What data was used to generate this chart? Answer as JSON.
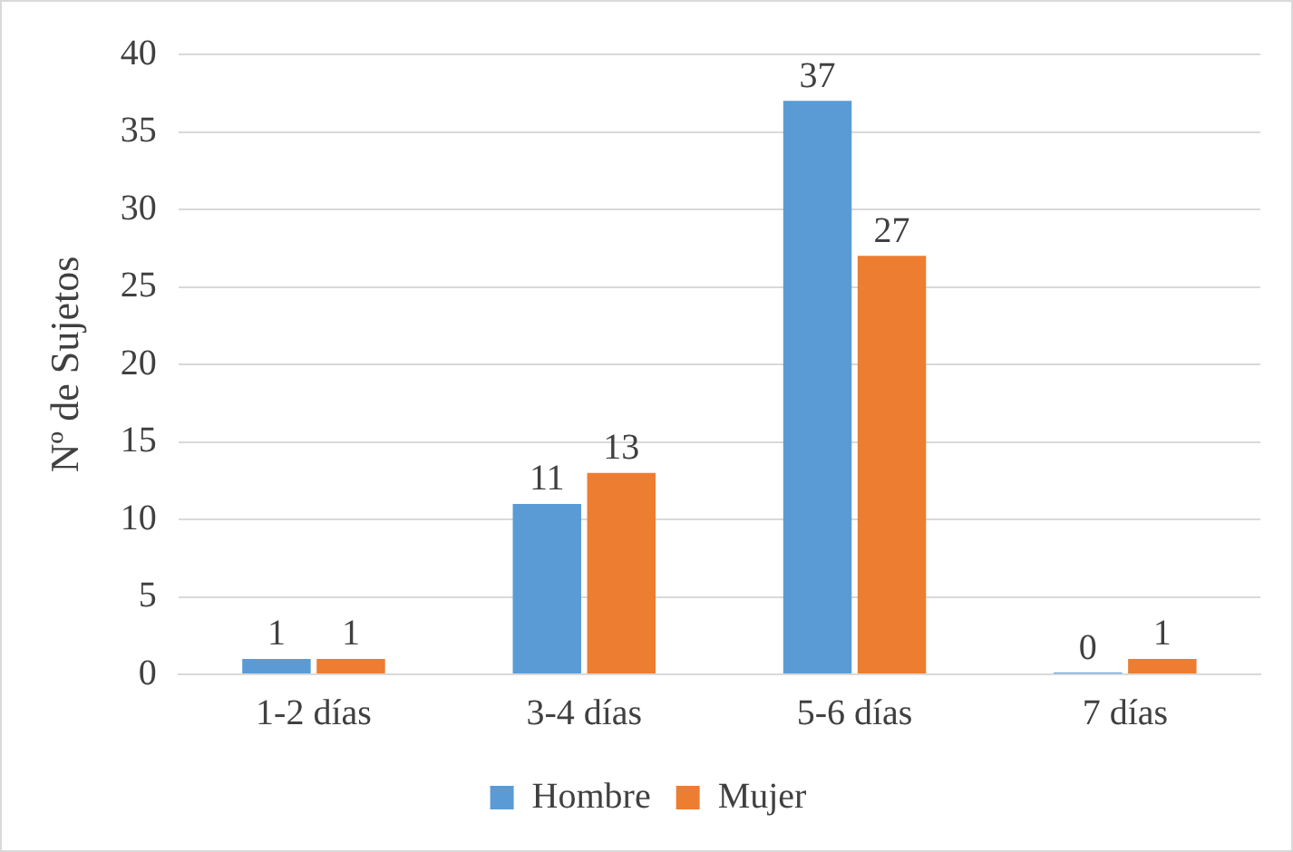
{
  "chart_data": {
    "type": "bar",
    "ylabel": "Nº de Sujetos",
    "categories": [
      "1-2 días",
      "3-4 días",
      "5-6 días",
      "7 días"
    ],
    "series": [
      {
        "name": "Hombre",
        "color": "#5b9bd5",
        "values": [
          1,
          11,
          37,
          0
        ]
      },
      {
        "name": "Mujer",
        "color": "#ed7d31",
        "values": [
          1,
          13,
          27,
          1
        ]
      }
    ],
    "ylim": [
      0,
      40
    ],
    "yticks": [
      0,
      5,
      10,
      15,
      20,
      25,
      30,
      35,
      40
    ],
    "grid": "y",
    "legend": "bottom",
    "data_labels": true
  }
}
